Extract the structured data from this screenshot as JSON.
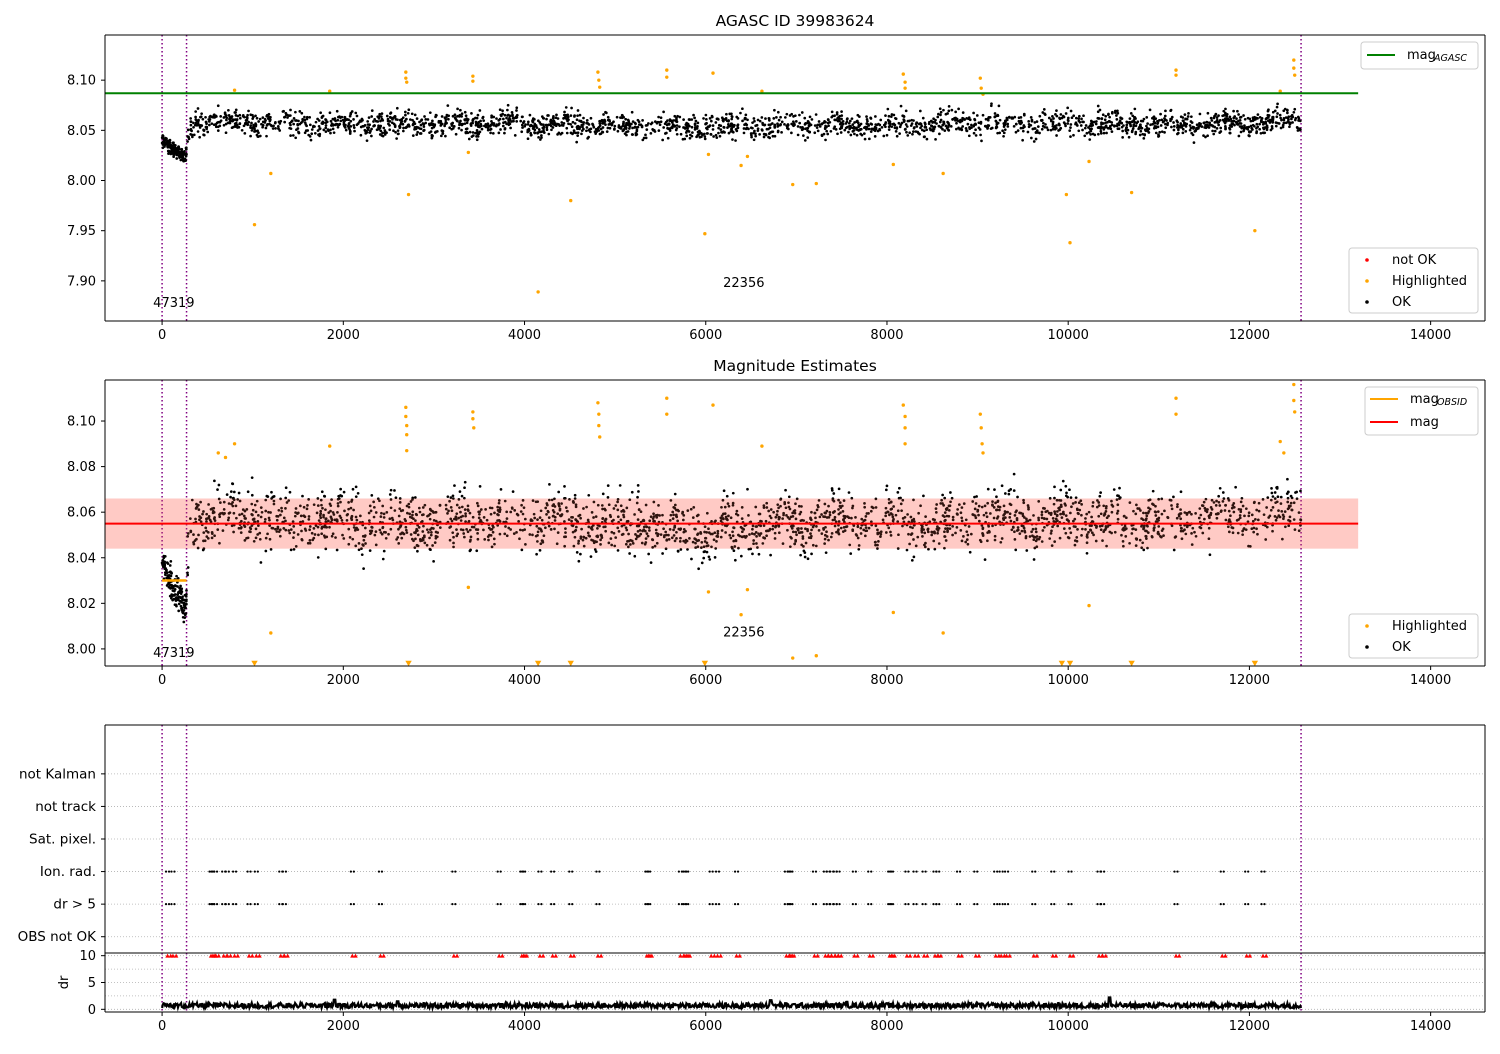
{
  "figure": {
    "colors": {
      "ok": "#000000",
      "highlighted": "#ffa500",
      "not_ok": "#ff0000",
      "mag_agasc": "#008000",
      "mag": "#ff0000",
      "mag_obsid": "#ffa500",
      "obs_boundary": "#800080",
      "mag_band_fill": "#ffcccc"
    }
  },
  "chart_data": [
    {
      "type": "scatter",
      "title": "AGASC ID 39983624",
      "xlabel": "",
      "ylabel": "",
      "xlim": [
        -630,
        14600
      ],
      "ylim": [
        7.86,
        8.145
      ],
      "xticks": [
        0,
        2000,
        4000,
        6000,
        8000,
        10000,
        12000,
        14000
      ],
      "xtick_labels": [
        "0",
        "2000",
        "4000",
        "6000",
        "8000",
        "10000",
        "12000",
        "14000"
      ],
      "yticks": [
        7.9,
        7.95,
        8.0,
        8.05,
        8.1
      ],
      "ytick_labels": [
        "7.90",
        "7.95",
        "8.00",
        "8.05",
        "8.10"
      ],
      "grid": false,
      "lines": [
        {
          "name": "mag",
          "name_sub": "AGASC",
          "x": [
            -630,
            13200
          ],
          "y": [
            8.087,
            8.087
          ],
          "color": "#008000"
        }
      ],
      "vlines": [
        0,
        270,
        12570
      ],
      "obsid_labels": [
        {
          "text": "47319",
          "x": 130,
          "y": 7.874
        },
        {
          "text": "22356",
          "x": 6420,
          "y": 7.894
        }
      ],
      "legends": [
        {
          "placement": "upper right",
          "entries": [
            {
              "label": "mag",
              "sub": "AGASC",
              "kind": "line",
              "color": "#008000"
            }
          ]
        },
        {
          "placement": "lower right",
          "entries": [
            {
              "label": "not OK",
              "kind": "dot",
              "color": "#ff0000"
            },
            {
              "label": "Highlighted",
              "kind": "dot",
              "color": "#ffa500"
            },
            {
              "label": "OK",
              "kind": "dot",
              "color": "#000000"
            }
          ]
        }
      ],
      "series": [
        {
          "name": "OK",
          "color": "#000000",
          "trend": {
            "x": [
              0,
              80,
              160,
              260,
              300,
              800,
              1500,
              2600,
              3400,
              4800,
              6000,
              7000,
              8200,
              9000,
              10000,
              11000,
              12000,
              12570
            ],
            "y": [
              8.038,
              8.033,
              8.026,
              8.021,
              8.058,
              8.058,
              8.056,
              8.055,
              8.057,
              8.056,
              8.052,
              8.056,
              8.055,
              8.057,
              8.057,
              8.056,
              8.058,
              8.06
            ],
            "spread": 0.011,
            "n_points": 2600
          }
        },
        {
          "name": "Highlighted",
          "color": "#ffa500",
          "points": [
            [
              800,
              8.09
            ],
            [
              1200,
              8.007
            ],
            [
              1020,
              7.956
            ],
            [
              1850,
              8.089
            ],
            [
              2690,
              8.108
            ],
            [
              2690,
              8.102
            ],
            [
              2700,
              8.098
            ],
            [
              2720,
              7.986
            ],
            [
              3380,
              8.028
            ],
            [
              3430,
              8.104
            ],
            [
              3430,
              8.099
            ],
            [
              4150,
              7.889
            ],
            [
              4510,
              7.98
            ],
            [
              4810,
              8.108
            ],
            [
              4820,
              8.1
            ],
            [
              4830,
              8.093
            ],
            [
              5570,
              8.11
            ],
            [
              5570,
              8.103
            ],
            [
              5990,
              7.947
            ],
            [
              6030,
              8.026
            ],
            [
              6080,
              8.107
            ],
            [
              6390,
              8.015
            ],
            [
              6460,
              8.024
            ],
            [
              6620,
              8.089
            ],
            [
              6960,
              7.996
            ],
            [
              7220,
              7.997
            ],
            [
              8070,
              8.016
            ],
            [
              8180,
              8.106
            ],
            [
              8200,
              8.098
            ],
            [
              8200,
              8.092
            ],
            [
              8620,
              8.007
            ],
            [
              9030,
              8.102
            ],
            [
              9040,
              8.092
            ],
            [
              9060,
              8.086
            ],
            [
              9980,
              7.986
            ],
            [
              10020,
              7.938
            ],
            [
              10230,
              8.019
            ],
            [
              10700,
              7.988
            ],
            [
              11190,
              8.11
            ],
            [
              11190,
              8.105
            ],
            [
              12060,
              7.95
            ],
            [
              12340,
              8.089
            ],
            [
              12490,
              8.12
            ],
            [
              12490,
              8.112
            ],
            [
              12500,
              8.105
            ]
          ]
        }
      ]
    },
    {
      "type": "scatter",
      "title": "Magnitude Estimates",
      "xlabel": "",
      "ylabel": "",
      "xlim": [
        -630,
        14600
      ],
      "ylim": [
        7.9925,
        8.118
      ],
      "xticks": [
        0,
        2000,
        4000,
        6000,
        8000,
        10000,
        12000,
        14000
      ],
      "xtick_labels": [
        "0",
        "2000",
        "4000",
        "6000",
        "8000",
        "10000",
        "12000",
        "14000"
      ],
      "yticks": [
        8.0,
        8.02,
        8.04,
        8.06,
        8.08,
        8.1
      ],
      "ytick_labels": [
        "8.00",
        "8.02",
        "8.04",
        "8.06",
        "8.08",
        "8.10"
      ],
      "grid": false,
      "band": {
        "y1": 8.044,
        "y2": 8.066,
        "x": [
          -630,
          13200
        ],
        "color": "#ffcccc"
      },
      "lines": [
        {
          "name": "mag",
          "x": [
            -630,
            13200
          ],
          "y": [
            8.055,
            8.055
          ],
          "color": "#ff0000"
        },
        {
          "name": "mag",
          "name_sub": "OBSID",
          "x": [
            0,
            270
          ],
          "y": [
            8.03,
            8.03
          ],
          "color": "#ffa500"
        }
      ],
      "vlines": [
        0,
        270,
        12570
      ],
      "obsid_labels": [
        {
          "text": "47319",
          "x": 130,
          "y": 7.9965
        },
        {
          "text": "22356",
          "x": 6420,
          "y": 8.0055
        }
      ],
      "legends": [
        {
          "placement": "upper right",
          "entries": [
            {
              "label": "mag",
              "sub": "OBSID",
              "kind": "line",
              "color": "#ffa500"
            },
            {
              "label": "mag",
              "kind": "line",
              "color": "#ff0000"
            }
          ]
        },
        {
          "placement": "lower right",
          "entries": [
            {
              "label": "Highlighted",
              "kind": "dot",
              "color": "#ffa500"
            },
            {
              "label": "OK",
              "kind": "dot",
              "color": "#000000"
            }
          ]
        }
      ],
      "series": [
        {
          "name": "OK",
          "color": "#000000",
          "trend": {
            "x": [
              0,
              80,
              160,
              260,
              300,
              800,
              1500,
              2600,
              3400,
              4800,
              6000,
              7000,
              8200,
              9000,
              10000,
              11000,
              12000,
              12570
            ],
            "y": [
              8.036,
              8.03,
              8.022,
              8.016,
              8.058,
              8.058,
              8.056,
              8.055,
              8.057,
              8.056,
              8.052,
              8.056,
              8.055,
              8.057,
              8.057,
              8.056,
              8.058,
              8.06
            ],
            "spread": 0.011,
            "n_points": 2600
          }
        },
        {
          "name": "Highlighted",
          "color": "#ffa500",
          "points": [
            [
              620,
              8.086
            ],
            [
              700,
              8.084
            ],
            [
              800,
              8.09
            ],
            [
              1200,
              8.007
            ],
            [
              1850,
              8.089
            ],
            [
              2690,
              8.106
            ],
            [
              2690,
              8.102
            ],
            [
              2700,
              8.098
            ],
            [
              2700,
              8.094
            ],
            [
              2700,
              8.087
            ],
            [
              3380,
              8.027
            ],
            [
              3430,
              8.104
            ],
            [
              3430,
              8.101
            ],
            [
              3440,
              8.097
            ],
            [
              4810,
              8.108
            ],
            [
              4820,
              8.103
            ],
            [
              4820,
              8.098
            ],
            [
              4830,
              8.093
            ],
            [
              5570,
              8.11
            ],
            [
              5570,
              8.103
            ],
            [
              6030,
              8.025
            ],
            [
              6080,
              8.107
            ],
            [
              6390,
              8.015
            ],
            [
              6460,
              8.026
            ],
            [
              6620,
              8.089
            ],
            [
              6960,
              7.996
            ],
            [
              7220,
              7.997
            ],
            [
              8070,
              8.016
            ],
            [
              8180,
              8.107
            ],
            [
              8200,
              8.102
            ],
            [
              8200,
              8.097
            ],
            [
              8200,
              8.09
            ],
            [
              8620,
              8.007
            ],
            [
              9030,
              8.103
            ],
            [
              9040,
              8.097
            ],
            [
              9050,
              8.09
            ],
            [
              9060,
              8.086
            ],
            [
              10230,
              8.019
            ],
            [
              11190,
              8.11
            ],
            [
              11190,
              8.103
            ],
            [
              12340,
              8.091
            ],
            [
              12380,
              8.086
            ],
            [
              12490,
              8.116
            ],
            [
              12490,
              8.109
            ],
            [
              12500,
              8.104
            ]
          ]
        },
        {
          "name": "Highlighted (below axis)",
          "color": "#ffa500",
          "marker": "triangle-down",
          "x": [
            1020,
            2720,
            4150,
            4510,
            5990,
            9930,
            10020,
            10700,
            12060
          ],
          "y": 7.9935
        }
      ]
    },
    {
      "type": "scatter",
      "title": "",
      "xlabel": "",
      "ylabel": "",
      "xlim": [
        -630,
        14600
      ],
      "ylim": [
        -0.5,
        6.5
      ],
      "yticks": [
        0,
        1,
        2,
        3,
        4,
        5
      ],
      "ytick_labels": [
        "OBS not OK",
        "dr > 5",
        "Ion. rad.",
        "Sat. pixel.",
        "not track",
        "not Kalman"
      ],
      "grid": true,
      "vlines": [
        0,
        270,
        12570
      ],
      "flag_events": {
        "color": "#000000",
        "x": [
          60,
          120,
          540,
          560,
          590,
          680,
          720,
          800,
          960,
          1040,
          1310,
          1350,
          2100,
          2410,
          3220,
          3720,
          3970,
          3990,
          4170,
          4310,
          4510,
          4810,
          5350,
          5370,
          5720,
          5770,
          5790,
          6060,
          6130,
          6340,
          6890,
          6920,
          6940,
          7200,
          7320,
          7350,
          7390,
          7430,
          7460,
          7640,
          7810,
          8030,
          8050,
          8220,
          8310,
          8410,
          8530,
          8560,
          8790,
          8980,
          9200,
          9260,
          9320,
          9620,
          9830,
          10020,
          10340,
          10380,
          11190,
          11700,
          11970,
          12150
        ],
        "rows": [
          "Ion. rad.",
          "dr > 5"
        ]
      }
    },
    {
      "type": "line",
      "title": "",
      "xlabel": "",
      "ylabel": "dr",
      "xlim": [
        -630,
        14600
      ],
      "ylim": [
        -0.5,
        10.5
      ],
      "xticks": [
        0,
        2000,
        4000,
        6000,
        8000,
        10000,
        12000,
        14000
      ],
      "xtick_labels": [
        "0",
        "2000",
        "4000",
        "6000",
        "8000",
        "10000",
        "12000",
        "14000"
      ],
      "yticks": [
        0,
        5,
        10
      ],
      "ytick_labels": [
        "0",
        "5",
        "10"
      ],
      "grid": true,
      "vlines": [
        0,
        270,
        12570
      ],
      "series": [
        {
          "name": "dr",
          "color": "#000000",
          "trend": {
            "baseline": 0.7,
            "jitter": 0.6,
            "n_points": 1500,
            "spikes": [
              [
                1900,
                1.8
              ],
              [
                2600,
                1.5
              ],
              [
                6720,
                1.7
              ],
              [
                7560,
                1.4
              ],
              [
                10460,
                2.2
              ]
            ]
          }
        },
        {
          "name": "dr capped",
          "color": "#ff0000",
          "marker": "triangle-up",
          "y": 10,
          "x": [
            60,
            120,
            540,
            560,
            590,
            680,
            720,
            800,
            960,
            1040,
            1310,
            1350,
            2100,
            2410,
            3220,
            3720,
            3970,
            3990,
            4170,
            4310,
            4510,
            4810,
            5350,
            5370,
            5720,
            5770,
            5790,
            6060,
            6130,
            6340,
            6890,
            6920,
            6940,
            7200,
            7320,
            7350,
            7390,
            7430,
            7460,
            7640,
            7810,
            8030,
            8050,
            8220,
            8310,
            8410,
            8530,
            8560,
            8790,
            8980,
            9200,
            9260,
            9320,
            9620,
            9830,
            10020,
            10340,
            10380,
            11190,
            11700,
            11970,
            12150
          ]
        }
      ]
    }
  ]
}
